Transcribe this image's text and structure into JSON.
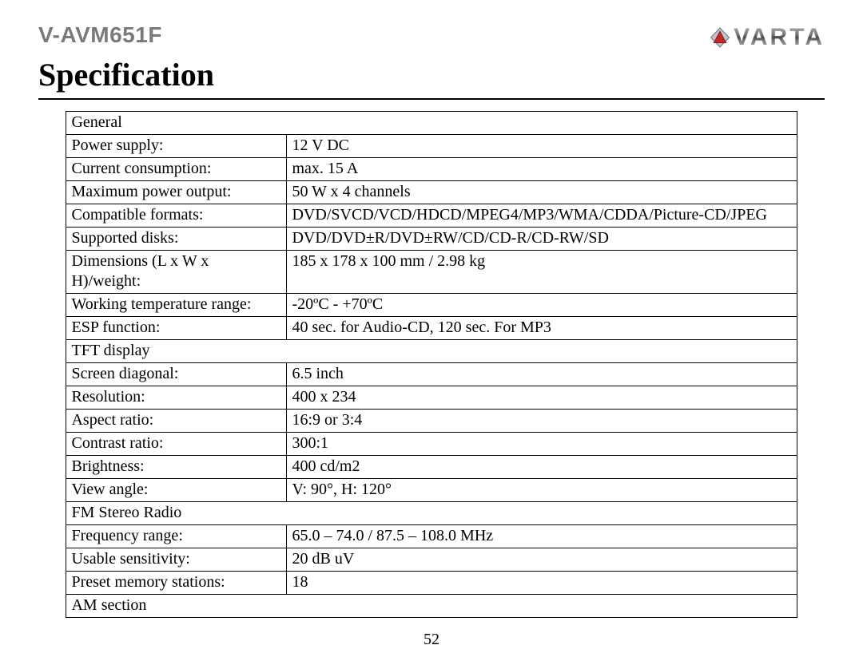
{
  "model": "V-AVM651F",
  "brand": "VARTA",
  "title": "Specification",
  "page_number": "52",
  "logo": {
    "outer_color": "#c0c7cc",
    "outer_stroke": "#6d757a",
    "triangle_color": "#c62828",
    "triangle_stroke": "#7a0f0f"
  },
  "rows": [
    {
      "type": "section",
      "label": "General"
    },
    {
      "type": "pair",
      "label": "Power supply:",
      "value": "12 V DC"
    },
    {
      "type": "pair",
      "label": "Current consumption:",
      "value": "max. 15 A"
    },
    {
      "type": "pair",
      "label": "Maximum power output:",
      "value": "50 W x 4 channels"
    },
    {
      "type": "pair",
      "label": "Compatible formats:",
      "value": "DVD/SVCD/VCD/HDCD/MPEG4/MP3/WMA/CDDA/Picture-CD/JPEG"
    },
    {
      "type": "pair",
      "label": "Supported disks:",
      "value": "DVD/DVD±R/DVD±RW/CD/CD-R/CD-RW/SD"
    },
    {
      "type": "pair",
      "label": "Dimensions (L x W x H)/weight:",
      "value": "185 x 178 x 100 mm / 2.98 kg"
    },
    {
      "type": "pair",
      "label": "Working temperature range:",
      "value": "-20ºС  -  +70ºС"
    },
    {
      "type": "pair",
      "label": "ESP function:",
      "value": "40 sec. for Audio-CD, 120 sec. For MP3"
    },
    {
      "type": "section",
      "label": "TFT display"
    },
    {
      "type": "pair",
      "label": "Screen diagonal:",
      "value": "6.5 inch"
    },
    {
      "type": "pair",
      "label": "Resolution:",
      "value": "400 x 234"
    },
    {
      "type": "pair",
      "label": "Aspect ratio:",
      "value": "16:9 or 3:4"
    },
    {
      "type": "pair",
      "label": "Contrast ratio:",
      "value": "300:1"
    },
    {
      "type": "pair",
      "label": "Brightness:",
      "value": "400 cd/m2"
    },
    {
      "type": "pair",
      "label": "View angle:",
      "value": "V: 90°, H: 120°"
    },
    {
      "type": "section",
      "label": "FM Stereo Radio"
    },
    {
      "type": "pair",
      "label": "Frequency range:",
      "value": "65.0 – 74.0 / 87.5 – 108.0 MHz"
    },
    {
      "type": "pair",
      "label": "Usable sensitivity:",
      "value": "20 dB uV"
    },
    {
      "type": "pair",
      "label": "Preset memory stations:",
      "value": "18"
    },
    {
      "type": "section",
      "label": "AM section"
    }
  ]
}
